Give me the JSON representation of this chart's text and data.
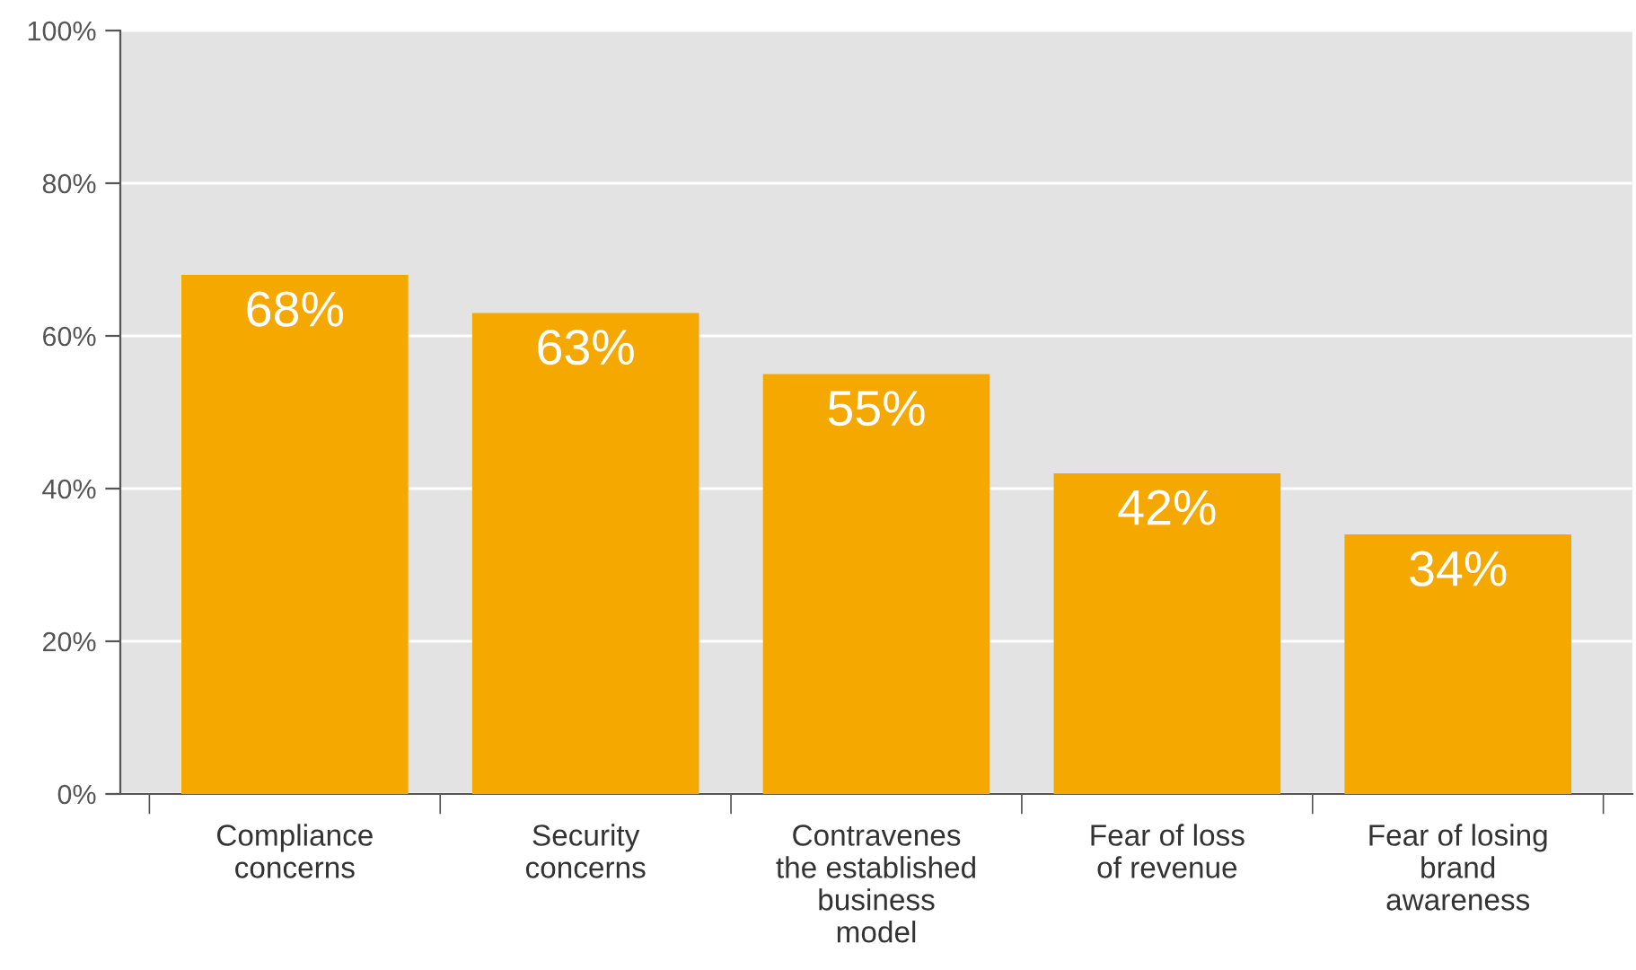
{
  "chart_data": {
    "type": "bar",
    "categories": [
      "Compliance\nconcerns",
      "Security\nconcerns",
      "Contravenes\nthe established\nbusiness\nmodel",
      "Fear of loss\nof revenue",
      "Fear of losing\nbrand\nawareness"
    ],
    "values": [
      68,
      63,
      55,
      42,
      34
    ],
    "value_labels": [
      "68%",
      "63%",
      "55%",
      "42%",
      "34%"
    ],
    "color": "#f5a800",
    "ylim": [
      0,
      100
    ],
    "yticks": [
      {
        "value": 0,
        "label": "0%"
      },
      {
        "value": 20,
        "label": "20%"
      },
      {
        "value": 40,
        "label": "40%"
      },
      {
        "value": 60,
        "label": "60%"
      },
      {
        "value": 80,
        "label": "80%"
      },
      {
        "value": 100,
        "label": "100%"
      }
    ],
    "grid": "y"
  }
}
